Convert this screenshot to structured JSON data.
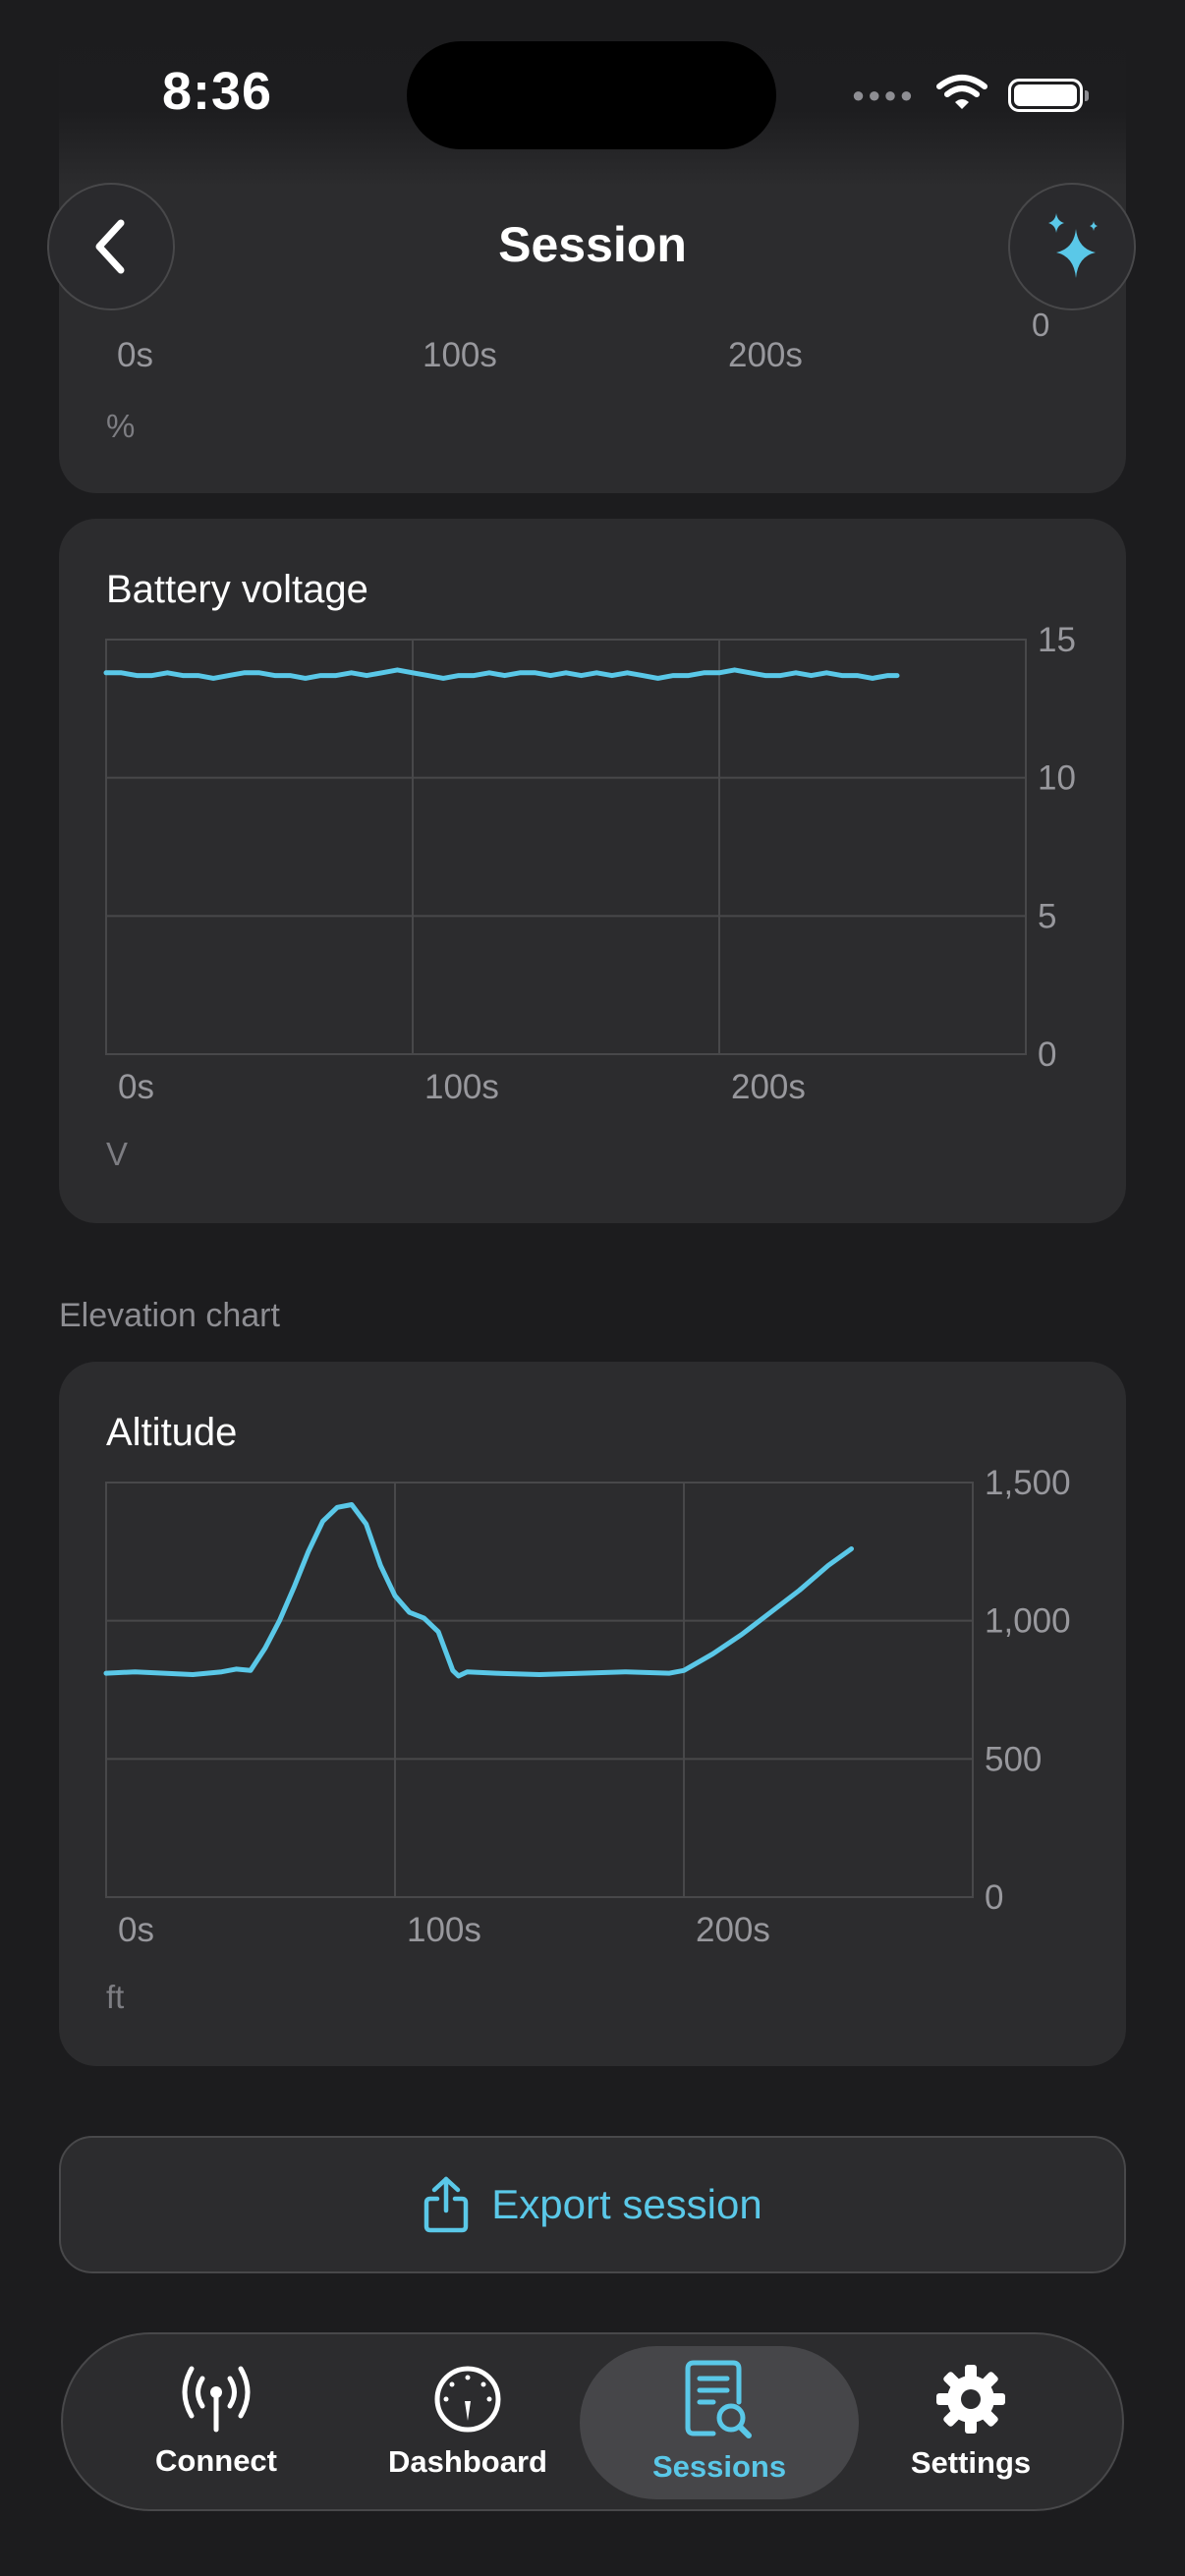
{
  "status_bar": {
    "time": "8:36"
  },
  "header": {
    "title": "Session"
  },
  "top_chart": {
    "x_ticks": [
      "0s",
      "100s",
      "200s"
    ],
    "y_tick_visible": "0",
    "unit": "%"
  },
  "battery_card": {
    "title": "Battery voltage",
    "unit": "V"
  },
  "elevation_section": {
    "label": "Elevation chart"
  },
  "altitude_card": {
    "title": "Altitude",
    "unit": "ft"
  },
  "actions": {
    "export_label": "Export session"
  },
  "tab_bar": {
    "tabs": [
      {
        "label": "Connect",
        "icon": "antenna-icon",
        "active": false
      },
      {
        "label": "Dashboard",
        "icon": "gauge-icon",
        "active": false
      },
      {
        "label": "Sessions",
        "icon": "document-search-icon",
        "active": true
      },
      {
        "label": "Settings",
        "icon": "gear-icon",
        "active": false
      }
    ]
  },
  "colors": {
    "background": "#1c1c1e",
    "card": "#2c2c2e",
    "accent": "#5ac8e8",
    "tick_text": "#98989d"
  },
  "chart_data": [
    {
      "type": "line",
      "title": "Battery voltage",
      "ylabel": "V",
      "x_tick_labels": [
        "0s",
        "100s",
        "200s"
      ],
      "y_tick_labels": [
        "15",
        "10",
        "5",
        "0"
      ],
      "xlim": [
        0,
        300
      ],
      "ylim": [
        0,
        15
      ],
      "grid": true,
      "series": [
        {
          "x": [
            0,
            5,
            10,
            15,
            20,
            25,
            30,
            35,
            40,
            45,
            50,
            55,
            60,
            65,
            70,
            75,
            80,
            85,
            90,
            95,
            100,
            105,
            110,
            115,
            120,
            125,
            130,
            135,
            140,
            145,
            150,
            155,
            160,
            165,
            170,
            175,
            180,
            185,
            190,
            195,
            200,
            205,
            210,
            215,
            220,
            225,
            230,
            235,
            240,
            245,
            250,
            255,
            258
          ],
          "values": [
            13.8,
            13.8,
            13.7,
            13.7,
            13.8,
            13.7,
            13.7,
            13.6,
            13.7,
            13.8,
            13.8,
            13.7,
            13.7,
            13.6,
            13.7,
            13.7,
            13.8,
            13.7,
            13.8,
            13.9,
            13.8,
            13.7,
            13.6,
            13.7,
            13.7,
            13.8,
            13.7,
            13.8,
            13.8,
            13.7,
            13.8,
            13.7,
            13.8,
            13.7,
            13.8,
            13.7,
            13.6,
            13.7,
            13.7,
            13.8,
            13.8,
            13.9,
            13.8,
            13.7,
            13.7,
            13.8,
            13.7,
            13.8,
            13.7,
            13.7,
            13.6,
            13.7,
            13.7
          ]
        }
      ]
    },
    {
      "type": "line",
      "title": "Altitude",
      "ylabel": "ft",
      "x_tick_labels": [
        "0s",
        "100s",
        "200s"
      ],
      "y_tick_labels": [
        "1,500",
        "1,000",
        "500",
        "0"
      ],
      "xlim": [
        0,
        300
      ],
      "ylim": [
        0,
        1500
      ],
      "grid": true,
      "series": [
        {
          "x": [
            0,
            10,
            20,
            30,
            40,
            45,
            50,
            55,
            60,
            65,
            70,
            75,
            80,
            85,
            90,
            95,
            100,
            105,
            110,
            115,
            120,
            122,
            125,
            135,
            150,
            165,
            180,
            195,
            200,
            210,
            220,
            230,
            240,
            250,
            258
          ],
          "values": [
            810,
            815,
            810,
            805,
            815,
            825,
            820,
            900,
            1000,
            1120,
            1250,
            1360,
            1410,
            1420,
            1350,
            1200,
            1090,
            1030,
            1010,
            960,
            820,
            800,
            815,
            810,
            805,
            810,
            815,
            810,
            820,
            880,
            950,
            1030,
            1110,
            1200,
            1260
          ]
        }
      ]
    }
  ]
}
